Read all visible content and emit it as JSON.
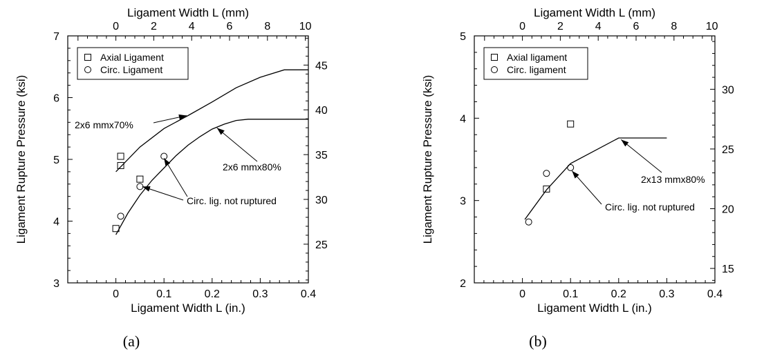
{
  "chart_data": [
    {
      "type": "scatter",
      "panel_label": "(a)",
      "xlabel": "Ligament Width L (in.)",
      "ylabel": "Ligament Rupture Pressure (ksi)",
      "x2label": "Ligament Width L (mm)",
      "xlim": [
        -0.1,
        0.4
      ],
      "ylim": [
        3,
        7
      ],
      "x2lim": [
        -2.54,
        10.16
      ],
      "y2lim": [
        20.68,
        48.26
      ],
      "xticks": [
        0,
        0.1,
        0.2,
        0.3,
        0.4
      ],
      "xtick_labels": [
        "0",
        "0.1",
        "0.2",
        "0.3",
        "0.4"
      ],
      "yticks": [
        3,
        4,
        5,
        6,
        7
      ],
      "ytick_labels": [
        "3",
        "4",
        "5",
        "6",
        "7"
      ],
      "x2ticks": [
        0,
        2,
        4,
        6,
        8,
        10
      ],
      "x2tick_labels": [
        "0",
        "2",
        "4",
        "6",
        "8",
        "10"
      ],
      "y2ticks": [
        25,
        30,
        35,
        40,
        45
      ],
      "y2tick_labels": [
        "25",
        "30",
        "35",
        "40",
        "45"
      ],
      "grid": false,
      "legend": {
        "position": "top-left",
        "entries": [
          {
            "label": "Axial Ligament",
            "marker": "square"
          },
          {
            "label": "Circ. Ligament",
            "marker": "circle"
          }
        ]
      },
      "series": [
        {
          "name": "Axial Ligament",
          "kind": "points",
          "marker": "square",
          "x": [
            0,
            0.01,
            0.01,
            0.05
          ],
          "y": [
            3.88,
            4.9,
            5.05,
            4.68
          ]
        },
        {
          "name": "Circ. Ligament",
          "kind": "points",
          "marker": "circle",
          "x": [
            0.01,
            0.05,
            0.1
          ],
          "y": [
            4.08,
            4.56,
            5.05
          ]
        },
        {
          "name": "2x6 mmx70%",
          "kind": "line",
          "x": [
            0,
            0.05,
            0.1,
            0.15,
            0.2,
            0.25,
            0.3,
            0.35,
            0.4
          ],
          "y": [
            4.8,
            5.2,
            5.5,
            5.71,
            5.93,
            6.16,
            6.33,
            6.45,
            6.45
          ]
        },
        {
          "name": "2x6 mmx80%",
          "kind": "line",
          "x": [
            0,
            0.025,
            0.05,
            0.075,
            0.1,
            0.125,
            0.15,
            0.175,
            0.2,
            0.225,
            0.25,
            0.275,
            0.3,
            0.4
          ],
          "y": [
            3.78,
            4.13,
            4.42,
            4.66,
            4.86,
            5.06,
            5.23,
            5.37,
            5.49,
            5.57,
            5.63,
            5.65,
            5.65,
            5.65
          ]
        }
      ],
      "annotations": [
        {
          "text": "2x6 mmx70%",
          "arrow_to": [
            0.147,
            5.71
          ]
        },
        {
          "text": "2x6 mmx80%",
          "arrow_to": [
            0.21,
            5.51
          ]
        },
        {
          "text": "Circ. lig. not ruptured",
          "arrow_to": [
            [
              0.055,
              4.56
            ],
            [
              0.1,
              5.02
            ]
          ]
        }
      ]
    },
    {
      "type": "scatter",
      "panel_label": "(b)",
      "xlabel": "Ligament Width L (in.)",
      "ylabel": "Ligament Rupture Pressure (ksi)",
      "x2label": "Ligament Width L (mm)",
      "xlim": [
        -0.1,
        0.4
      ],
      "ylim": [
        2,
        5
      ],
      "x2lim": [
        -2.54,
        10.16
      ],
      "y2lim": [
        13.79,
        34.47
      ],
      "xticks": [
        0,
        0.1,
        0.2,
        0.3,
        0.4
      ],
      "xtick_labels": [
        "0",
        "0.1",
        "0.2",
        "0.3",
        "0.4"
      ],
      "yticks": [
        2,
        3,
        4,
        5
      ],
      "ytick_labels": [
        "2",
        "3",
        "4",
        "5"
      ],
      "x2ticks": [
        0,
        2,
        4,
        6,
        8,
        10
      ],
      "x2tick_labels": [
        "0",
        "2",
        "4",
        "6",
        "8",
        "10"
      ],
      "y2ticks": [
        15,
        20,
        25,
        30
      ],
      "y2tick_labels": [
        "15",
        "20",
        "25",
        "30"
      ],
      "grid": false,
      "legend": {
        "position": "top-left",
        "entries": [
          {
            "label": "Axial ligament",
            "marker": "square"
          },
          {
            "label": "Circ. ligament",
            "marker": "circle"
          }
        ]
      },
      "series": [
        {
          "name": "Axial ligament",
          "kind": "points",
          "marker": "square",
          "x": [
            0.05,
            0.1
          ],
          "y": [
            3.14,
            3.93
          ]
        },
        {
          "name": "Circ. ligament",
          "kind": "points",
          "marker": "circle",
          "x": [
            0.013,
            0.05,
            0.1
          ],
          "y": [
            2.74,
            3.33,
            3.4
          ]
        },
        {
          "name": "2x13 mmx80%",
          "kind": "line",
          "x": [
            0.005,
            0.05,
            0.1,
            0.2,
            0.3
          ],
          "y": [
            2.77,
            3.13,
            3.45,
            3.76,
            3.76
          ]
        }
      ],
      "annotations": [
        {
          "text": "2x13 mmx80%",
          "arrow_to": [
            0.205,
            3.74
          ]
        },
        {
          "text": "Circ. lig. not ruptured",
          "arrow_to": [
            0.103,
            3.36
          ]
        }
      ]
    }
  ]
}
